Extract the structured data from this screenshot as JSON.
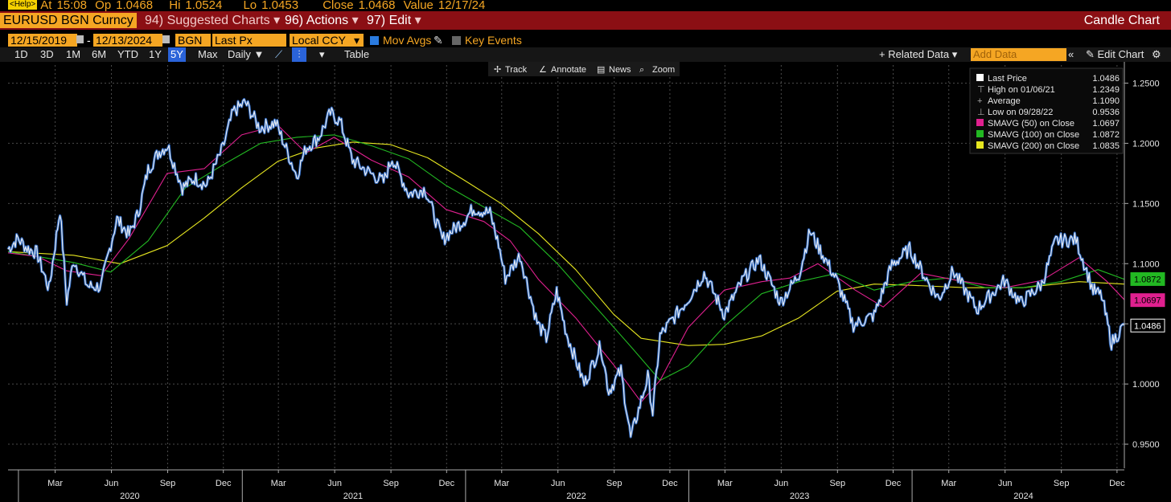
{
  "quote": {
    "icon": "<Help>",
    "at_label": "At",
    "at_value": "15:08",
    "op_label": "Op",
    "op_value": "1.0468",
    "hi_label": "Hi",
    "hi_value": "1.0524",
    "lo_label": "Lo",
    "lo_value": "1.0453",
    "close_label": "Close",
    "close_value": "1.0468",
    "value_label": "Value",
    "value_value": "12/17/24"
  },
  "toolbar": {
    "ticker": "EURUSD BGN Curncy",
    "suggested": "94) Suggested Charts",
    "actions": "96) Actions",
    "edit": "97) Edit",
    "title": "Candle Chart"
  },
  "controls": {
    "start_date": "12/15/2019",
    "end_date": "12/13/2024",
    "source": "BGN",
    "field": "Last Px",
    "currency": "Local CCY",
    "mov_avgs": "Mov Avgs",
    "key_events": "Key Events"
  },
  "range_bar": {
    "ranges": [
      "1D",
      "3D",
      "1M",
      "6M",
      "YTD",
      "1Y",
      "5Y",
      "Max"
    ],
    "selected": "5Y",
    "period": "Daily",
    "table": "Table",
    "related": "Related Data",
    "add_data": "Add Data",
    "edit_chart": "Edit Chart"
  },
  "chart_tools": [
    "Track",
    "Annotate",
    "News",
    "Zoom"
  ],
  "colors": {
    "price": "#e8ecf2",
    "price_shade": "#2f6fcf",
    "sma50": "#e0208f",
    "sma100": "#22b822",
    "sma200": "#e6e620",
    "grid": "#4a4a4a"
  },
  "chart_data": {
    "type": "line",
    "title": "EURUSD BGN Curncy",
    "ylim": [
      0.93,
      1.265
    ],
    "y_ticks": [
      "1.2500",
      "1.2000",
      "1.1500",
      "1.1000",
      "1.0500",
      "1.0000",
      "0.9500"
    ],
    "y_tick_values": [
      1.25,
      1.2,
      1.15,
      1.1,
      1.05,
      1.0,
      0.95
    ],
    "x_range": [
      "2019-12-15",
      "2024-12-13"
    ],
    "month_labels": [
      {
        "label": "Mar",
        "date": "2020-03-01"
      },
      {
        "label": "Jun",
        "date": "2020-06-01"
      },
      {
        "label": "Sep",
        "date": "2020-09-01"
      },
      {
        "label": "Dec",
        "date": "2020-12-01"
      },
      {
        "label": "Mar",
        "date": "2021-03-01"
      },
      {
        "label": "Jun",
        "date": "2021-06-01"
      },
      {
        "label": "Sep",
        "date": "2021-09-01"
      },
      {
        "label": "Dec",
        "date": "2021-12-01"
      },
      {
        "label": "Mar",
        "date": "2022-03-01"
      },
      {
        "label": "Jun",
        "date": "2022-06-01"
      },
      {
        "label": "Sep",
        "date": "2022-09-01"
      },
      {
        "label": "Dec",
        "date": "2022-12-01"
      },
      {
        "label": "Mar",
        "date": "2023-03-01"
      },
      {
        "label": "Jun",
        "date": "2023-06-01"
      },
      {
        "label": "Sep",
        "date": "2023-09-01"
      },
      {
        "label": "Dec",
        "date": "2023-12-01"
      },
      {
        "label": "Mar",
        "date": "2024-03-01"
      },
      {
        "label": "Jun",
        "date": "2024-06-01"
      },
      {
        "label": "Sep",
        "date": "2024-09-01"
      },
      {
        "label": "Dec",
        "date": "2024-12-01"
      }
    ],
    "year_labels": [
      {
        "label": "2020",
        "date": "2020-07-01"
      },
      {
        "label": "2021",
        "date": "2021-07-01"
      },
      {
        "label": "2022",
        "date": "2022-07-01"
      },
      {
        "label": "2023",
        "date": "2023-07-01"
      },
      {
        "label": "2024",
        "date": "2024-07-01"
      }
    ],
    "legend": [
      {
        "label": "Last Price",
        "value": "1.0486",
        "color": "#ffffff",
        "marker": "square"
      },
      {
        "label": "High on 01/06/21",
        "value": "1.2349",
        "color": "#aaaaaa",
        "marker": "high"
      },
      {
        "label": "Average",
        "value": "1.1090",
        "color": "#aaaaaa",
        "marker": "avg"
      },
      {
        "label": "Low on 09/28/22",
        "value": "0.9536",
        "color": "#aaaaaa",
        "marker": "low"
      },
      {
        "label": "SMAVG (50)  on Close",
        "value": "1.0697",
        "color": "#e0208f",
        "marker": "square"
      },
      {
        "label": "SMAVG (100)  on Close",
        "value": "1.0872",
        "color": "#22b822",
        "marker": "square"
      },
      {
        "label": "SMAVG (200)  on Close",
        "value": "1.0835",
        "color": "#e6e620",
        "marker": "square"
      }
    ],
    "last_value_tags": [
      {
        "value": "1.0872",
        "color": "#22b822",
        "level": 1.0872
      },
      {
        "value": "1.0697",
        "color": "#e0208f",
        "level": 1.0697
      },
      {
        "value": "1.0486",
        "color": "#ffffff",
        "level": 1.0486
      }
    ],
    "series": [
      {
        "name": "Last Price",
        "color": "#e8ecf2",
        "points": [
          [
            "2019-12-15",
            1.112
          ],
          [
            "2019-12-31",
            1.121
          ],
          [
            "2020-01-15",
            1.113
          ],
          [
            "2020-01-31",
            1.109
          ],
          [
            "2020-02-20",
            1.079
          ],
          [
            "2020-03-09",
            1.145
          ],
          [
            "2020-03-20",
            1.069
          ],
          [
            "2020-03-31",
            1.103
          ],
          [
            "2020-04-24",
            1.081
          ],
          [
            "2020-05-15",
            1.081
          ],
          [
            "2020-05-29",
            1.112
          ],
          [
            "2020-06-10",
            1.137
          ],
          [
            "2020-06-30",
            1.124
          ],
          [
            "2020-07-15",
            1.142
          ],
          [
            "2020-07-31",
            1.178
          ],
          [
            "2020-08-18",
            1.193
          ],
          [
            "2020-09-01",
            1.198
          ],
          [
            "2020-09-25",
            1.163
          ],
          [
            "2020-10-15",
            1.171
          ],
          [
            "2020-11-04",
            1.165
          ],
          [
            "2020-11-30",
            1.196
          ],
          [
            "2020-12-17",
            1.226
          ],
          [
            "2021-01-06",
            1.234
          ],
          [
            "2021-01-29",
            1.213
          ],
          [
            "2021-02-25",
            1.217
          ],
          [
            "2021-03-31",
            1.173
          ],
          [
            "2021-04-15",
            1.196
          ],
          [
            "2021-05-06",
            1.205
          ],
          [
            "2021-05-25",
            1.225
          ],
          [
            "2021-06-10",
            1.218
          ],
          [
            "2021-06-30",
            1.186
          ],
          [
            "2021-07-21",
            1.178
          ],
          [
            "2021-08-20",
            1.168
          ],
          [
            "2021-09-03",
            1.188
          ],
          [
            "2021-09-30",
            1.158
          ],
          [
            "2021-10-27",
            1.162
          ],
          [
            "2021-11-24",
            1.12
          ],
          [
            "2021-12-31",
            1.137
          ],
          [
            "2022-01-14",
            1.146
          ],
          [
            "2022-02-10",
            1.142
          ],
          [
            "2022-02-24",
            1.116
          ],
          [
            "2022-03-07",
            1.088
          ],
          [
            "2022-03-31",
            1.107
          ],
          [
            "2022-04-28",
            1.051
          ],
          [
            "2022-05-13",
            1.038
          ],
          [
            "2022-05-30",
            1.077
          ],
          [
            "2022-06-15",
            1.042
          ],
          [
            "2022-07-14",
            1.0
          ],
          [
            "2022-08-10",
            1.032
          ],
          [
            "2022-08-23",
            0.994
          ],
          [
            "2022-09-12",
            1.011
          ],
          [
            "2022-09-28",
            0.955
          ],
          [
            "2022-10-26",
            1.006
          ],
          [
            "2022-11-03",
            0.976
          ],
          [
            "2022-11-15",
            1.04
          ],
          [
            "2022-12-30",
            1.07
          ],
          [
            "2023-01-26",
            1.092
          ],
          [
            "2023-02-28",
            1.058
          ],
          [
            "2023-03-31",
            1.087
          ],
          [
            "2023-04-26",
            1.104
          ],
          [
            "2023-05-31",
            1.068
          ],
          [
            "2023-06-30",
            1.091
          ],
          [
            "2023-07-18",
            1.127
          ],
          [
            "2023-08-31",
            1.086
          ],
          [
            "2023-09-27",
            1.049
          ],
          [
            "2023-10-31",
            1.057
          ],
          [
            "2023-11-29",
            1.099
          ],
          [
            "2023-12-28",
            1.112
          ],
          [
            "2024-01-31",
            1.081
          ],
          [
            "2024-02-14",
            1.071
          ],
          [
            "2024-03-08",
            1.094
          ],
          [
            "2024-04-16",
            1.062
          ],
          [
            "2024-05-31",
            1.086
          ],
          [
            "2024-06-26",
            1.067
          ],
          [
            "2024-07-31",
            1.083
          ],
          [
            "2024-08-23",
            1.119
          ],
          [
            "2024-09-25",
            1.12
          ],
          [
            "2024-10-23",
            1.078
          ],
          [
            "2024-11-06",
            1.073
          ],
          [
            "2024-11-22",
            1.034
          ],
          [
            "2024-12-13",
            1.049
          ]
        ]
      },
      {
        "name": "SMAVG (50)  on Close",
        "color": "#e0208f",
        "points": [
          [
            "2019-12-15",
            1.109
          ],
          [
            "2020-02-01",
            1.106
          ],
          [
            "2020-03-20",
            1.094
          ],
          [
            "2020-05-15",
            1.09
          ],
          [
            "2020-06-30",
            1.121
          ],
          [
            "2020-08-31",
            1.175
          ],
          [
            "2020-10-31",
            1.179
          ],
          [
            "2020-12-31",
            1.207
          ],
          [
            "2021-02-28",
            1.215
          ],
          [
            "2021-04-15",
            1.192
          ],
          [
            "2021-05-31",
            1.205
          ],
          [
            "2021-07-31",
            1.186
          ],
          [
            "2021-09-30",
            1.172
          ],
          [
            "2021-11-30",
            1.145
          ],
          [
            "2022-01-31",
            1.135
          ],
          [
            "2022-03-15",
            1.119
          ],
          [
            "2022-04-30",
            1.087
          ],
          [
            "2022-06-30",
            1.055
          ],
          [
            "2022-08-31",
            1.016
          ],
          [
            "2022-10-15",
            0.985
          ],
          [
            "2022-11-15",
            1.003
          ],
          [
            "2022-12-31",
            1.047
          ],
          [
            "2023-02-28",
            1.078
          ],
          [
            "2023-04-30",
            1.085
          ],
          [
            "2023-06-15",
            1.088
          ],
          [
            "2023-07-31",
            1.1
          ],
          [
            "2023-09-30",
            1.078
          ],
          [
            "2023-11-15",
            1.064
          ],
          [
            "2024-01-15",
            1.092
          ],
          [
            "2024-03-15",
            1.086
          ],
          [
            "2024-05-31",
            1.08
          ],
          [
            "2024-07-31",
            1.086
          ],
          [
            "2024-09-30",
            1.105
          ],
          [
            "2024-11-15",
            1.085
          ],
          [
            "2024-12-13",
            1.07
          ]
        ]
      },
      {
        "name": "SMAVG (100)  on Close",
        "color": "#22b822",
        "points": [
          [
            "2019-12-15",
            1.11
          ],
          [
            "2020-03-31",
            1.101
          ],
          [
            "2020-05-31",
            1.093
          ],
          [
            "2020-07-31",
            1.119
          ],
          [
            "2020-09-30",
            1.163
          ],
          [
            "2020-11-30",
            1.182
          ],
          [
            "2021-01-31",
            1.2
          ],
          [
            "2021-03-31",
            1.205
          ],
          [
            "2021-05-31",
            1.207
          ],
          [
            "2021-07-31",
            1.198
          ],
          [
            "2021-09-30",
            1.187
          ],
          [
            "2021-11-30",
            1.165
          ],
          [
            "2022-01-31",
            1.147
          ],
          [
            "2022-03-31",
            1.13
          ],
          [
            "2022-05-31",
            1.1
          ],
          [
            "2022-07-31",
            1.065
          ],
          [
            "2022-09-30",
            1.03
          ],
          [
            "2022-11-15",
            1.003
          ],
          [
            "2022-12-31",
            1.015
          ],
          [
            "2023-02-28",
            1.048
          ],
          [
            "2023-04-30",
            1.075
          ],
          [
            "2023-06-30",
            1.085
          ],
          [
            "2023-08-31",
            1.092
          ],
          [
            "2023-10-31",
            1.078
          ],
          [
            "2023-12-31",
            1.085
          ],
          [
            "2024-02-28",
            1.088
          ],
          [
            "2024-04-30",
            1.08
          ],
          [
            "2024-06-30",
            1.08
          ],
          [
            "2024-08-31",
            1.085
          ],
          [
            "2024-10-31",
            1.095
          ],
          [
            "2024-12-13",
            1.087
          ]
        ]
      },
      {
        "name": "SMAVG (200)  on Close",
        "color": "#e6e620",
        "points": [
          [
            "2019-12-15",
            1.11
          ],
          [
            "2020-03-31",
            1.107
          ],
          [
            "2020-06-15",
            1.1
          ],
          [
            "2020-08-31",
            1.115
          ],
          [
            "2020-10-31",
            1.138
          ],
          [
            "2020-12-31",
            1.163
          ],
          [
            "2021-02-28",
            1.185
          ],
          [
            "2021-04-30",
            1.196
          ],
          [
            "2021-06-30",
            1.201
          ],
          [
            "2021-08-31",
            1.199
          ],
          [
            "2021-10-31",
            1.188
          ],
          [
            "2021-12-31",
            1.169
          ],
          [
            "2022-02-28",
            1.15
          ],
          [
            "2022-04-30",
            1.125
          ],
          [
            "2022-06-30",
            1.095
          ],
          [
            "2022-08-31",
            1.058
          ],
          [
            "2022-10-15",
            1.038
          ],
          [
            "2022-12-31",
            1.032
          ],
          [
            "2023-02-28",
            1.033
          ],
          [
            "2023-04-30",
            1.04
          ],
          [
            "2023-06-30",
            1.055
          ],
          [
            "2023-08-31",
            1.077
          ],
          [
            "2023-10-31",
            1.083
          ],
          [
            "2023-12-31",
            1.082
          ],
          [
            "2024-03-31",
            1.08
          ],
          [
            "2024-06-30",
            1.08
          ],
          [
            "2024-09-30",
            1.085
          ],
          [
            "2024-12-13",
            1.083
          ]
        ]
      }
    ]
  }
}
